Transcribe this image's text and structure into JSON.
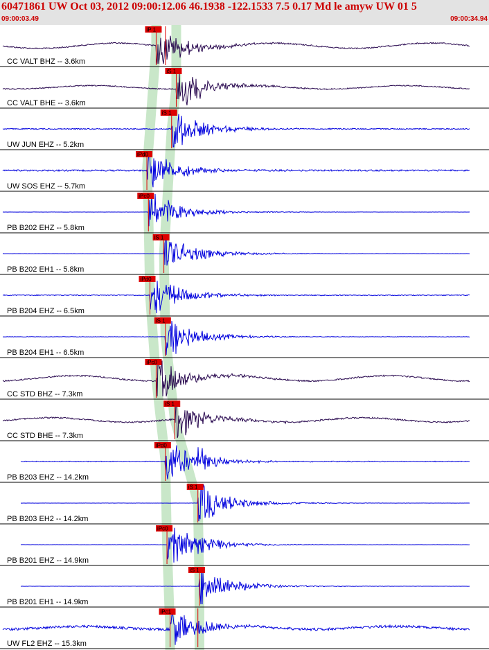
{
  "header": {
    "title": "60471861 UW Oct 03, 2012 09:00:12.06   46.1938 -122.1533  7.5 0.17 Md le amyw UW 01   5",
    "time_start": "09:00:03.49",
    "time_end": "09:00:34.94"
  },
  "colors": {
    "header_bg": "#e3e3e3",
    "header_text": "#cc0000",
    "trace_blue": "#0000dd",
    "trace_dark": "#2a0a50",
    "pick_red": "#dd0000",
    "pick_band": "#bfe3bf"
  },
  "chart_data": {
    "type": "line",
    "xlabel": "",
    "ylabel": "",
    "xlim": [
      "09:00:03.49",
      "09:00:34.94"
    ],
    "traces": [
      {
        "label": "CC VALT BHZ -- 3.6km",
        "color": "dark",
        "pick": "iP 1",
        "pick_time": "09:00:13.5",
        "pick2_time": "09:00:14.1",
        "second_event": null,
        "noise": 0.18,
        "wave": 0.55
      },
      {
        "label": "CC VALT BHE -- 3.6km",
        "color": "dark",
        "pick": "iS 1",
        "pick_time": "09:00:14.8",
        "pick2_time": null,
        "second_event": null,
        "noise": 0.15,
        "wave": 0.35
      },
      {
        "label": "UW JUN EHZ -- 5.2km",
        "color": "blue",
        "pick": "iS 1",
        "pick_time": "09:00:14.5",
        "pick2_time": null,
        "second_event": null,
        "noise": 0.15,
        "wave": 0
      },
      {
        "label": "UW SOS EHZ -- 5.7km",
        "color": "blue",
        "pick": "iPd0",
        "pick_time": "09:00:12.9",
        "pick2_time": null,
        "second_event": null,
        "noise": 0.22,
        "wave": 0
      },
      {
        "label": "PB B202 EHZ -- 5.8km",
        "color": "blue",
        "pick": "iPc0",
        "pick_time": "09:00:13.0",
        "pick2_time": null,
        "second_event": null,
        "noise": 0.02,
        "wave": 0
      },
      {
        "label": "PB B202 EH1 -- 5.8km",
        "color": "blue",
        "pick": "iS 1",
        "pick_time": "09:00:14.0",
        "pick2_time": null,
        "second_event": null,
        "noise": 0.02,
        "wave": 0
      },
      {
        "label": "PB B204 EHZ -- 6.5km",
        "color": "blue",
        "pick": "iPd0",
        "pick_time": "09:00:13.1",
        "pick2_time": null,
        "second_event": null,
        "noise": 0.12,
        "wave": 0
      },
      {
        "label": "PB B204 EH1 -- 6.5km",
        "color": "blue",
        "pick": "iS 1",
        "pick_time": "09:00:14.1",
        "pick2_time": null,
        "second_event": null,
        "noise": 0.05,
        "wave": 0
      },
      {
        "label": "CC STD BHZ -- 7.3km",
        "color": "dark",
        "pick": "iPc0",
        "pick_time": "09:00:13.5",
        "pick2_time": null,
        "second_event": null,
        "noise": 0.2,
        "wave": 0.55
      },
      {
        "label": "CC STD BHE -- 7.3km",
        "color": "dark",
        "pick": "iS 1",
        "pick_time": "09:00:14.7",
        "pick2_time": null,
        "second_event": null,
        "noise": 0.2,
        "wave": 0.45
      },
      {
        "label": "PB B203 EHZ -- 14.2km",
        "color": "blue",
        "pick": "iPd0",
        "pick_time": "09:00:14.1",
        "pick2_time": null,
        "second_event": "09:00:16.2",
        "noise": 0.12,
        "wave": 0
      },
      {
        "label": "PB B203 EH2 -- 14.2km",
        "color": "blue",
        "pick": "iS 1",
        "pick_time": "09:00:16.2",
        "pick2_time": null,
        "second_event": null,
        "noise": 0.02,
        "wave": 0
      },
      {
        "label": "PB B201 EHZ -- 14.9km",
        "color": "blue",
        "pick": "iPc0",
        "pick_time": "09:00:14.2",
        "pick2_time": null,
        "second_event": "09:00:16.2",
        "noise": 0.03,
        "wave": 0
      },
      {
        "label": "PB B201 EH1 -- 14.9km",
        "color": "blue",
        "pick": "iS 1",
        "pick_time": "09:00:16.3",
        "pick2_time": null,
        "second_event": null,
        "noise": 0.03,
        "wave": 0
      },
      {
        "label": "UW FL2 EHZ -- 15.3km",
        "color": "blue",
        "pick": "iPc1",
        "pick_time": "09:00:14.4",
        "pick2_time": "09:00:16.2",
        "second_event": null,
        "noise": 0.35,
        "wave": 0.3
      }
    ]
  }
}
